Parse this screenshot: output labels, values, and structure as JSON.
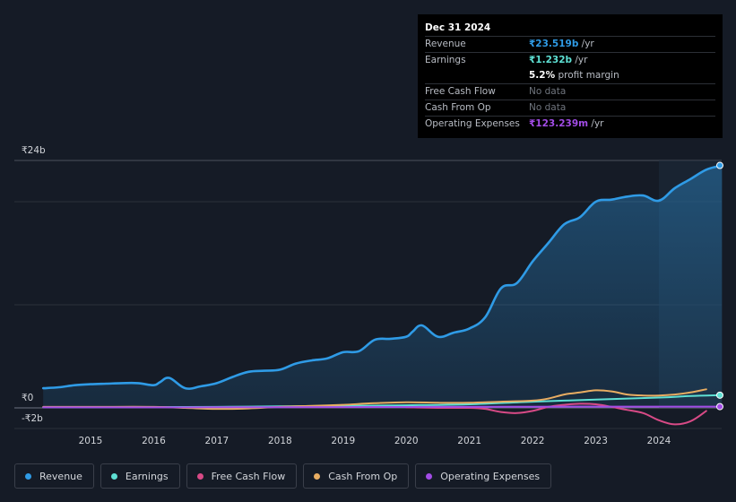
{
  "tooltip": {
    "date": "Dec 31 2024",
    "rows": [
      {
        "label": "Revenue",
        "value": "₹23.519b",
        "unit": " /yr",
        "color": "#2f9be6"
      },
      {
        "label": "Earnings",
        "value": "₹1.232b",
        "unit": " /yr",
        "color": "#5ee0d4"
      },
      {
        "label": "",
        "value": "5.2%",
        "unit": " profit margin",
        "color": "#ffffff"
      },
      {
        "label": "Free Cash Flow",
        "value": "No data",
        "unit": "",
        "color": "#70757e"
      },
      {
        "label": "Cash From Op",
        "value": "No data",
        "unit": "",
        "color": "#70757e"
      },
      {
        "label": "Operating Expenses",
        "value": "₹123.239m",
        "unit": " /yr",
        "color": "#a24ce6"
      }
    ]
  },
  "legend": [
    {
      "label": "Revenue",
      "color": "#2f9be6"
    },
    {
      "label": "Earnings",
      "color": "#5ee0d4"
    },
    {
      "label": "Free Cash Flow",
      "color": "#d84a86"
    },
    {
      "label": "Cash From Op",
      "color": "#e8ad62"
    },
    {
      "label": "Operating Expenses",
      "color": "#a24ce6"
    }
  ],
  "chart_data": {
    "type": "area",
    "y_tick_labels": [
      "₹24b",
      "₹0",
      "-₹2b"
    ],
    "ylim": [
      -2,
      24
    ],
    "x_tick_labels": [
      "2015",
      "2016",
      "2017",
      "2018",
      "2019",
      "2020",
      "2021",
      "2022",
      "2023",
      "2024"
    ],
    "xlim": [
      2014.25,
      2025.0
    ],
    "grid": true,
    "forecast_shade_start": 2024.0,
    "series": [
      {
        "name": "Revenue",
        "color": "#2f9be6",
        "x": [
          2014.25,
          2014.5,
          2014.75,
          2015.0,
          2015.25,
          2015.5,
          2015.75,
          2016.0,
          2016.1,
          2016.25,
          2016.5,
          2016.75,
          2017.0,
          2017.25,
          2017.5,
          2017.75,
          2018.0,
          2018.25,
          2018.5,
          2018.75,
          2019.0,
          2019.25,
          2019.5,
          2019.75,
          2020.0,
          2020.1,
          2020.25,
          2020.5,
          2020.75,
          2021.0,
          2021.25,
          2021.5,
          2021.75,
          2022.0,
          2022.25,
          2022.5,
          2022.75,
          2023.0,
          2023.25,
          2023.5,
          2023.75,
          2024.0,
          2024.25,
          2024.5,
          2024.75,
          2025.0
        ],
        "y": [
          1.9,
          2.0,
          2.2,
          2.3,
          2.35,
          2.4,
          2.4,
          2.2,
          2.5,
          2.9,
          1.9,
          2.1,
          2.4,
          3.0,
          3.5,
          3.6,
          3.7,
          4.3,
          4.6,
          4.8,
          5.4,
          5.5,
          6.6,
          6.7,
          6.9,
          7.4,
          8.0,
          6.9,
          7.3,
          7.7,
          8.8,
          11.6,
          12.1,
          14.2,
          16.0,
          17.8,
          18.5,
          20.0,
          20.2,
          20.5,
          20.6,
          20.1,
          21.3,
          22.2,
          23.1,
          23.519
        ]
      },
      {
        "name": "Earnings",
        "color": "#5ee0d4",
        "x": [
          2014.25,
          2015.0,
          2016.0,
          2017.0,
          2018.0,
          2019.0,
          2020.0,
          2021.0,
          2022.0,
          2023.0,
          2024.0,
          2024.5,
          2025.0
        ],
        "y": [
          0.05,
          0.05,
          0.08,
          0.1,
          0.15,
          0.2,
          0.25,
          0.35,
          0.6,
          0.8,
          1.0,
          1.15,
          1.232
        ]
      },
      {
        "name": "Free Cash Flow",
        "color": "#d84a86",
        "x": [
          2020.0,
          2020.5,
          2021.0,
          2021.25,
          2021.5,
          2021.75,
          2022.0,
          2022.25,
          2022.5,
          2022.75,
          2023.0,
          2023.25,
          2023.5,
          2023.75,
          2024.0,
          2024.25,
          2024.5,
          2024.75
        ],
        "y": [
          0.05,
          0.0,
          0.0,
          -0.1,
          -0.4,
          -0.5,
          -0.3,
          0.1,
          0.3,
          0.4,
          0.35,
          0.1,
          -0.2,
          -0.5,
          -1.2,
          -1.6,
          -1.3,
          -0.3
        ]
      },
      {
        "name": "Cash From Op",
        "color": "#e8ad62",
        "x": [
          2014.25,
          2015.0,
          2016.0,
          2016.5,
          2017.0,
          2017.5,
          2018.0,
          2018.5,
          2019.0,
          2019.5,
          2020.0,
          2020.5,
          2021.0,
          2021.5,
          2022.0,
          2022.25,
          2022.5,
          2022.75,
          2023.0,
          2023.25,
          2023.5,
          2023.75,
          2024.0,
          2024.25,
          2024.5,
          2024.75
        ],
        "y": [
          0.1,
          0.1,
          0.1,
          0.0,
          -0.1,
          -0.05,
          0.1,
          0.2,
          0.3,
          0.45,
          0.55,
          0.5,
          0.5,
          0.6,
          0.7,
          0.9,
          1.3,
          1.5,
          1.7,
          1.6,
          1.3,
          1.2,
          1.2,
          1.3,
          1.5,
          1.8
        ]
      },
      {
        "name": "Operating Expenses",
        "color": "#a24ce6",
        "x": [
          2014.25,
          2015.0,
          2016.0,
          2017.0,
          2018.0,
          2019.0,
          2020.0,
          2021.0,
          2022.0,
          2023.0,
          2024.0,
          2025.0
        ],
        "y": [
          0.05,
          0.05,
          0.05,
          0.06,
          0.07,
          0.08,
          0.09,
          0.1,
          0.11,
          0.12,
          0.12,
          0.123
        ]
      }
    ]
  }
}
